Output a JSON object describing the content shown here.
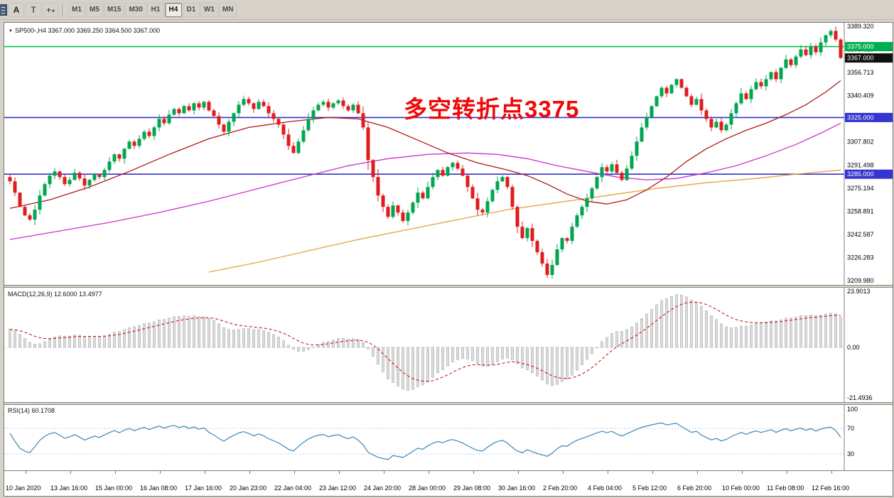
{
  "toolbar": {
    "tool_buttons": [
      "A",
      "T"
    ],
    "timeframes": [
      "M1",
      "M5",
      "M15",
      "M30",
      "H1",
      "H4",
      "D1",
      "W1",
      "MN"
    ],
    "active_timeframe": "H4"
  },
  "main_chart": {
    "title": "SP500-,H4 3367.000 3369.250 3364.500 3367.000",
    "annotation": "多空转折点3375",
    "y_axis_labels": [
      "3389.320",
      "3373.016",
      "3356.713",
      "3340.409",
      "3324.105",
      "3307.802",
      "3291.498",
      "3275.194",
      "3258.891",
      "3242.587",
      "3226.283",
      "3209.980"
    ],
    "price_badges": [
      {
        "label": "3375.000",
        "price": 3375.0,
        "bg": "#00b050"
      },
      {
        "label": "3367.000",
        "price": 3367.0,
        "bg": "#111111"
      },
      {
        "label": "3325.000",
        "price": 3325.0,
        "bg": "#3434d0"
      },
      {
        "label": "3285.000",
        "price": 3285.0,
        "bg": "#3434d0"
      }
    ]
  },
  "macd_panel": {
    "title": "MACD(12,26,9) 12.6000 13.4977",
    "y_labels": [
      {
        "text": "23.9013",
        "value": 23.9013
      },
      {
        "text": "0.00",
        "value": 0
      },
      {
        "text": "-21.4936",
        "value": -21.4936
      }
    ]
  },
  "rsi_panel": {
    "title": "RSI(14) 60.1708",
    "levels": [
      70,
      30
    ],
    "y_labels": [
      {
        "text": "100",
        "value": 100
      },
      {
        "text": "70",
        "value": 70
      },
      {
        "text": "30",
        "value": 30
      }
    ]
  },
  "time_axis": {
    "labels": [
      "10 Jan 2020",
      "13 Jan 16:00",
      "15 Jan 00:00",
      "16 Jan 08:00",
      "17 Jan 16:00",
      "20 Jan 23:00",
      "22 Jan 04:00",
      "23 Jan 12:00",
      "24 Jan 20:00",
      "28 Jan 00:00",
      "29 Jan 08:00",
      "30 Jan 16:00",
      "2 Feb 20:00",
      "4 Feb 04:00",
      "5 Feb 12:00",
      "6 Feb 20:00",
      "10 Feb 00:00",
      "11 Feb 08:00",
      "12 Feb 16:00"
    ]
  },
  "palette": {
    "bull": "#00a651",
    "bear": "#e01d1d",
    "ma_fast": "#b01818",
    "ma_mid": "#cc33cc",
    "ma_slow": "#e8a23c",
    "hline_blue": "#3232cc",
    "hline_green": "#00c24e",
    "macd_hist_fill": "#dcdcdc",
    "macd_hist_stroke": "#b0b0b0",
    "macd_signal": "#cc0000",
    "rsi_line": "#3b86b8",
    "level_dotted": "#9aa0c8",
    "annotation_red": "#f10707"
  },
  "chart_data": [
    {
      "type": "candlestick",
      "symbol": "SP500-",
      "timeframe": "H4",
      "ohlc_display": {
        "open": "3367.000",
        "high": "3369.250",
        "low": "3364.500",
        "close": "3367.000"
      },
      "ylim": [
        3209.98,
        3389.32
      ],
      "first_open": 3283,
      "closes": [
        3280,
        3272,
        3262,
        3256,
        3253,
        3260,
        3270,
        3278,
        3284,
        3287,
        3283,
        3278,
        3281,
        3286,
        3282,
        3277,
        3281,
        3285,
        3283,
        3288,
        3294,
        3299,
        3296,
        3303,
        3308,
        3305,
        3310,
        3315,
        3312,
        3318,
        3324,
        3321,
        3327,
        3331,
        3328,
        3333,
        3330,
        3335,
        3332,
        3336,
        3330,
        3326,
        3320,
        3315,
        3322,
        3328,
        3334,
        3338,
        3335,
        3331,
        3336,
        3333,
        3328,
        3324,
        3320,
        3313,
        3305,
        3300,
        3308,
        3316,
        3324,
        3330,
        3334,
        3336,
        3332,
        3335,
        3337,
        3333,
        3330,
        3334,
        3328,
        3318,
        3295,
        3283,
        3270,
        3262,
        3255,
        3263,
        3258,
        3252,
        3258,
        3265,
        3272,
        3268,
        3276,
        3283,
        3288,
        3284,
        3290,
        3293,
        3289,
        3284,
        3276,
        3268,
        3260,
        3258,
        3266,
        3274,
        3280,
        3283,
        3276,
        3262,
        3248,
        3240,
        3247,
        3238,
        3230,
        3222,
        3214,
        3221,
        3232,
        3240,
        3238,
        3248,
        3256,
        3262,
        3268,
        3275,
        3283,
        3290,
        3287,
        3292,
        3286,
        3281,
        3289,
        3298,
        3308,
        3318,
        3325,
        3333,
        3340,
        3346,
        3342,
        3348,
        3352,
        3346,
        3340,
        3334,
        3338,
        3330,
        3324,
        3318,
        3322,
        3316,
        3320,
        3328,
        3335,
        3342,
        3338,
        3345,
        3350,
        3347,
        3352,
        3357,
        3352,
        3360,
        3366,
        3362,
        3368,
        3373,
        3369,
        3375,
        3371,
        3378,
        3383,
        3386,
        3380,
        3367
      ],
      "hlines": [
        {
          "price": 3375,
          "color_key": "hline_green"
        },
        {
          "price": 3325,
          "color_key": "hline_blue"
        },
        {
          "price": 3285,
          "color_key": "hline_blue"
        }
      ],
      "overlays": [
        {
          "name": "ma-fast-red-line",
          "color_key": "ma_fast",
          "points": [
            [
              0,
              3261
            ],
            [
              8,
              3267
            ],
            [
              16,
              3276
            ],
            [
              24,
              3287
            ],
            [
              32,
              3299
            ],
            [
              40,
              3310
            ],
            [
              48,
              3318
            ],
            [
              56,
              3322
            ],
            [
              64,
              3325
            ],
            [
              70,
              3324
            ],
            [
              76,
              3318
            ],
            [
              82,
              3309
            ],
            [
              88,
              3300
            ],
            [
              94,
              3293
            ],
            [
              100,
              3288
            ],
            [
              104,
              3284
            ],
            [
              108,
              3278
            ],
            [
              112,
              3271
            ],
            [
              116,
              3266
            ],
            [
              120,
              3264
            ],
            [
              124,
              3267
            ],
            [
              128,
              3274
            ],
            [
              132,
              3283
            ],
            [
              136,
              3294
            ],
            [
              140,
              3303
            ],
            [
              144,
              3310
            ],
            [
              148,
              3316
            ],
            [
              152,
              3321
            ],
            [
              156,
              3327
            ],
            [
              160,
              3334
            ],
            [
              164,
              3343
            ],
            [
              167,
              3351
            ]
          ]
        },
        {
          "name": "ma-mid-magenta-line",
          "color_key": "ma_mid",
          "points": [
            [
              0,
              3239
            ],
            [
              10,
              3245
            ],
            [
              20,
              3251
            ],
            [
              30,
              3258
            ],
            [
              40,
              3266
            ],
            [
              50,
              3275
            ],
            [
              60,
              3284
            ],
            [
              68,
              3291
            ],
            [
              76,
              3296
            ],
            [
              84,
              3299
            ],
            [
              92,
              3300
            ],
            [
              98,
              3299
            ],
            [
              104,
              3296
            ],
            [
              110,
              3291
            ],
            [
              116,
              3287
            ],
            [
              122,
              3283
            ],
            [
              128,
              3281
            ],
            [
              134,
              3282
            ],
            [
              140,
              3286
            ],
            [
              146,
              3291
            ],
            [
              152,
              3298
            ],
            [
              158,
              3306
            ],
            [
              163,
              3314
            ],
            [
              167,
              3321
            ]
          ]
        },
        {
          "name": "ma-slow-orange-line",
          "color_key": "ma_slow",
          "points": [
            [
              40,
              3216
            ],
            [
              50,
              3223
            ],
            [
              60,
              3231
            ],
            [
              70,
              3239
            ],
            [
              80,
              3246
            ],
            [
              90,
              3253
            ],
            [
              100,
              3260
            ],
            [
              110,
              3265
            ],
            [
              120,
              3270
            ],
            [
              130,
              3275
            ],
            [
              140,
              3279
            ],
            [
              150,
              3282
            ],
            [
              158,
              3285
            ],
            [
              167,
              3288
            ]
          ]
        }
      ]
    },
    {
      "type": "macd",
      "params": [
        12,
        26,
        9
      ],
      "current": [
        12.6,
        13.4977
      ],
      "ylim": [
        -21.4936,
        23.9013
      ]
    },
    {
      "type": "rsi",
      "period": 14,
      "current": 60.1708,
      "levels": [
        70,
        30
      ],
      "ylim": [
        0,
        100
      ]
    }
  ]
}
